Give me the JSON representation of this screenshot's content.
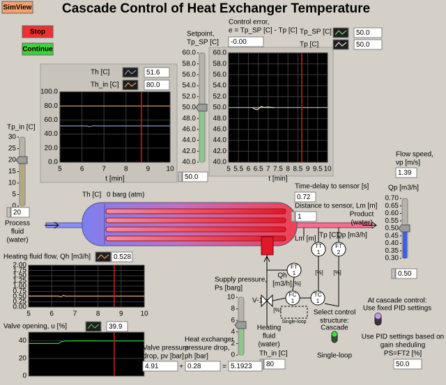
{
  "header": {
    "button": "SimView",
    "title": "Cascade Control of Heat Exchanger Temperature"
  },
  "buttons": {
    "stop": "Stop",
    "continue": "Continue"
  },
  "time_marker": 8.7,
  "setpoint": {
    "lines": [
      "Setpoint,",
      "Tp_SP [C]"
    ],
    "ticks": [
      {
        "value": 40,
        "label": "40.0"
      },
      {
        "value": 42,
        "label": "42.0"
      },
      {
        "value": 44,
        "label": "44.0"
      },
      {
        "value": 46,
        "label": "46.0"
      },
      {
        "value": 48,
        "label": "48.0"
      },
      {
        "value": 50,
        "label": "50.0"
      },
      {
        "value": 52,
        "label": "52.0"
      },
      {
        "value": 54,
        "label": "54.0"
      },
      {
        "value": 56,
        "label": "56.0"
      },
      {
        "value": 58,
        "label": "58.0"
      },
      {
        "value": 60,
        "label": "60.0"
      }
    ],
    "value": {
      "value": 50,
      "label": "50.0"
    }
  },
  "control_error": {
    "lines": [
      "Control error,",
      "e = Tp_SP [C] - Tp [C]"
    ],
    "value": "-0.00"
  },
  "tp_chart": {
    "xlim": [
      5,
      10
    ],
    "ylim": [
      40,
      60
    ],
    "xlabel": "t [min]",
    "xticks": [
      5,
      5.5,
      6,
      6.5,
      7,
      7.5,
      8,
      8.5,
      9,
      9.5,
      10
    ],
    "yticks": [
      {
        "value": 40,
        "label": "40.0"
      },
      {
        "value": 42,
        "label": "42.0"
      },
      {
        "value": 44,
        "label": "44.0"
      },
      {
        "value": 46,
        "label": "46.0"
      },
      {
        "value": 48,
        "label": "48.0"
      },
      {
        "value": 50,
        "label": "50.0"
      },
      {
        "value": 52,
        "label": "52.0"
      },
      {
        "value": 54,
        "label": "54.0"
      },
      {
        "value": 56,
        "label": "56.0"
      },
      {
        "value": 58,
        "label": "58.0"
      },
      {
        "value": 60,
        "label": "60.0"
      }
    ],
    "series": [
      {
        "name": "Tp_SP [C]",
        "color": "#7fd67f",
        "readout": "50.0",
        "x": [
          5,
          10
        ],
        "values": [
          50,
          50
        ]
      },
      {
        "name": "Tp [C]",
        "color": "#e8e8e8",
        "readout": "50.0",
        "x": [
          6.2,
          6.35,
          6.45,
          6.55,
          6.65,
          6.8,
          7,
          7.2,
          7.3
        ],
        "values": [
          50,
          49.7,
          49.6,
          49.9,
          50.2,
          50,
          50.1,
          50,
          50
        ]
      }
    ]
  },
  "th_chart": {
    "xlim": [
      5,
      10
    ],
    "ylim": [
      0,
      100
    ],
    "xlabel": "t [min]",
    "xticks": [
      5,
      6,
      7,
      8,
      9,
      10
    ],
    "yticks": [
      {
        "value": 0,
        "label": "0.0"
      },
      {
        "value": 20,
        "label": "20.0"
      },
      {
        "value": 40,
        "label": "40.0"
      },
      {
        "value": 60,
        "label": "60.0"
      },
      {
        "value": 80,
        "label": "80.0"
      },
      {
        "value": 100,
        "label": "100.0"
      }
    ],
    "series": [
      {
        "name": "Th [C]",
        "color": "#8a9ac0",
        "readout": "51.6",
        "x": [
          5,
          6.2,
          6.35,
          6.5,
          6.7,
          10
        ],
        "values": [
          51.6,
          51.6,
          50.6,
          51.9,
          51.6,
          51.6
        ]
      },
      {
        "name": "Th_in [C]",
        "color": "#e8a060",
        "readout": "80.0",
        "x": [
          5,
          10
        ],
        "values": [
          80,
          80
        ]
      }
    ]
  },
  "tp_in": {
    "label": "Tp_in [C]",
    "ticks": [
      0,
      5,
      10,
      15,
      20,
      25,
      30
    ],
    "value": 20
  },
  "hx": {
    "th_label": "Th [C]",
    "pressure": "0 barg (atm)",
    "process_fluid": [
      "Process",
      "fluid",
      "(water)"
    ],
    "product": [
      "Product",
      "(water)"
    ],
    "heating_fluid": [
      "Heating",
      "fluid",
      "(water)"
    ]
  },
  "sensor": {
    "delay_label": "Time-delay to sensor [s]",
    "delay": "0.72",
    "distance_label": "Distance to sensor, Lm [m]",
    "distance": "1"
  },
  "flow_speed": {
    "lines": [
      "Flow speed,",
      "vp [m/s]"
    ],
    "value": "1.39"
  },
  "qp": {
    "label": "Qp [m3/h]",
    "ticks": [
      {
        "value": 0.3,
        "label": "0.30"
      },
      {
        "value": 0.35,
        "label": "0.35"
      },
      {
        "value": 0.4,
        "label": "0.40"
      },
      {
        "value": 0.45,
        "label": "0.45"
      },
      {
        "value": 0.5,
        "label": "0.50"
      },
      {
        "value": 0.55,
        "label": "0.55"
      },
      {
        "value": 0.6,
        "label": "0.60"
      },
      {
        "value": 0.65,
        "label": "0.65"
      },
      {
        "value": 0.7,
        "label": "0.70"
      }
    ],
    "value": {
      "value": 0.5,
      "label": "0.50"
    }
  },
  "diagram": {
    "lm": "Lm [m]",
    "tp": "Tp [C]",
    "qp": "Qp [m3/h]",
    "qh": [
      "Qh",
      "[m3/h]"
    ],
    "percent": "[%]",
    "valve": "V-1",
    "single_loop": "Single-loop",
    "tt1": [
      "TT",
      "1"
    ],
    "ft2": [
      "FT",
      "2"
    ],
    "ft1": [
      "FT",
      "1"
    ],
    "fc1": [
      "FC",
      "1"
    ],
    "tc1": [
      "TC",
      "1"
    ]
  },
  "heating_flow": {
    "label": "Heating fluid flow, Qh [m3/h]",
    "readout": "0.528",
    "xlim": [
      5,
      10
    ],
    "ylim": [
      0,
      2
    ],
    "xticks": [
      5,
      6,
      7,
      8,
      9,
      10
    ],
    "yticks": [
      {
        "value": 0,
        "label": "0.00"
      },
      {
        "value": 0.25,
        "label": "0.25"
      },
      {
        "value": 0.5,
        "label": "0.50"
      },
      {
        "value": 0.75,
        "label": "0.75"
      },
      {
        "value": 1,
        "label": "1.00"
      },
      {
        "value": 1.25,
        "label": "1.25"
      },
      {
        "value": 1.5,
        "label": "1.50"
      },
      {
        "value": 1.75,
        "label": "1.75"
      },
      {
        "value": 2,
        "label": "2.00"
      }
    ],
    "series": [
      {
        "color": "#e8a060",
        "x": [
          5,
          6.3,
          6.4,
          6.5,
          6.6,
          10
        ],
        "values": [
          0.53,
          0.53,
          0.49,
          0.56,
          0.528,
          0.528
        ]
      }
    ]
  },
  "valve_opening": {
    "label": "Valve opening, u [%]",
    "readout": "39.9",
    "xlim": [
      5,
      10
    ],
    "ylim": [
      0,
      50
    ],
    "yticks": [
      0,
      20,
      40
    ],
    "series": [
      {
        "color": "#3cd03c",
        "x": [
          5,
          6.3,
          6.4,
          6.6,
          10
        ],
        "values": [
          37,
          37,
          39,
          40,
          39.9
        ]
      }
    ]
  },
  "supply": {
    "lines": [
      "Supply pressure,",
      "Ps [barg]"
    ],
    "ticks": [
      0,
      2,
      4,
      6,
      8,
      10
    ],
    "value": 5.1923
  },
  "equation": {
    "valve_lines": [
      "Valve pressure",
      "drop, pv [bar]"
    ],
    "valve": "4.91",
    "hx_lines": [
      "Heat exchanger",
      "pressure drop,",
      "ph [bar]"
    ],
    "hx": "0.28",
    "plus": "+",
    "equals": "=",
    "th_in_label": "Th_in [C]",
    "th_in": "80"
  },
  "control_structure": {
    "lines": [
      "Select control",
      "structure:"
    ],
    "cascade": "Cascade",
    "single": "Single-loop"
  },
  "pid_fixed": {
    "lines": [
      "At cascade control:",
      "Use fixed PID settings"
    ]
  },
  "pid_gain": {
    "lines": [
      "Use PID settings based on",
      "gain sheduling",
      "PS=FT2 [%]"
    ],
    "value": "50.0"
  }
}
